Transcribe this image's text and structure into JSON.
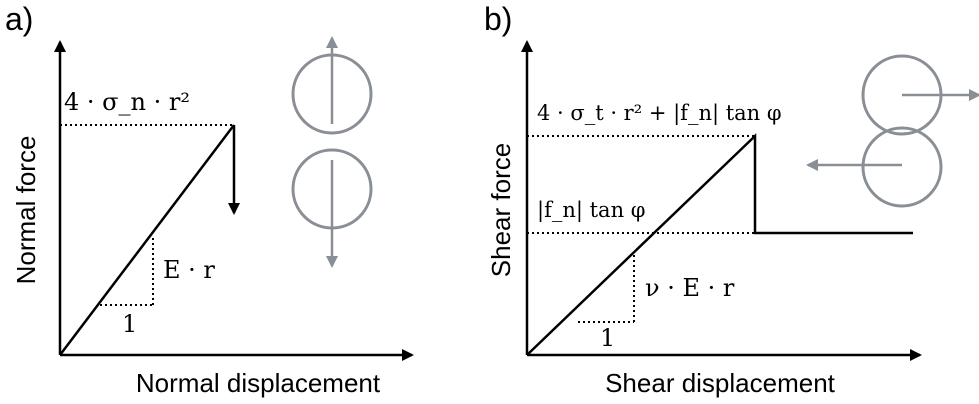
{
  "panels": [
    {
      "label": "a)",
      "xlabel": "Normal displacement",
      "ylabel": "Normal force",
      "peak_annotation": "4 · σ_n · r²",
      "slope_annotation": "E · r",
      "unit_annotation": "1"
    },
    {
      "label": "b)",
      "xlabel": "Shear displacement",
      "ylabel": "Shear force",
      "peak_annotation": "4 · σ_t · r² + |f_n| tan φ",
      "residual_annotation": "|f_n| tan φ",
      "slope_annotation": "ν · E · r",
      "unit_annotation": "1"
    }
  ],
  "colors": {
    "lines": "#000000",
    "grains": "#8a8f96"
  }
}
